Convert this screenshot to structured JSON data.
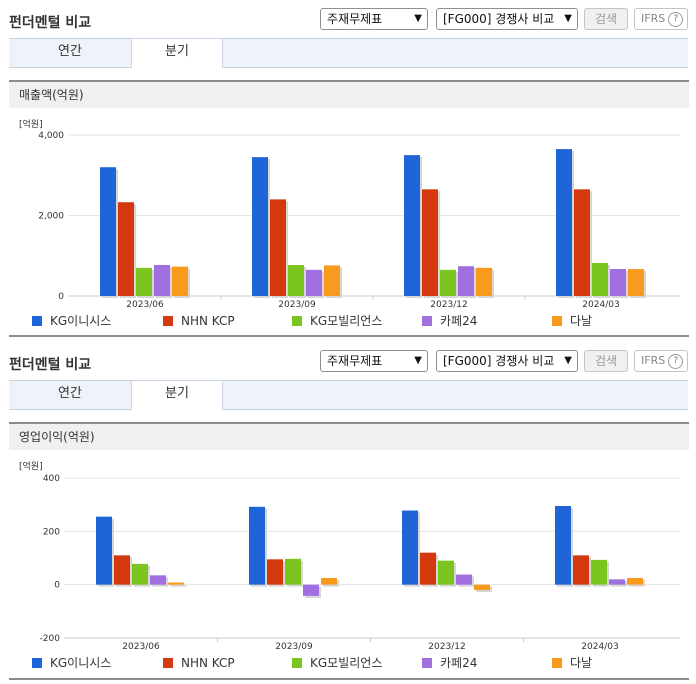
{
  "sections": [
    {
      "title": "펀더멘털 비교",
      "select1": "주재무제표",
      "select2": "[FG000] 경쟁사 비교",
      "search_label": "검색",
      "ifrs_label": "IFRS",
      "help": "?",
      "tabs": [
        {
          "label": "연간"
        },
        {
          "label": "분기"
        }
      ],
      "active_tab": "분기",
      "chart_title": "매출액(억원)",
      "unit": "[억원]"
    },
    {
      "title": "펀더멘털 비교",
      "select1": "주재무제표",
      "select2": "[FG000] 경쟁사 비교",
      "search_label": "검색",
      "ifrs_label": "IFRS",
      "help": "?",
      "tabs": [
        {
          "label": "연간"
        },
        {
          "label": "분기"
        }
      ],
      "active_tab": "분기",
      "chart_title": "영업이익(억원)",
      "unit": "[억원]"
    }
  ],
  "colors": {
    "KG이니시스": "#2065d8",
    "NHN KCP": "#d4380d",
    "KG모빌리언스": "#7cc41f",
    "카페24": "#a070e0",
    "다날": "#f99a1c"
  },
  "chart_data": [
    {
      "type": "bar",
      "title": "매출액(억원)",
      "ylabel": "[억원]",
      "categories": [
        "2023/06",
        "2023/09",
        "2023/12",
        "2024/03"
      ],
      "ylim": [
        0,
        4000
      ],
      "yticks": [
        "0",
        "2,000",
        "4,000"
      ],
      "ytick_values": [
        0,
        2000,
        4000
      ],
      "legend": "bottom",
      "grid": true,
      "series": [
        {
          "name": "KG이니시스",
          "values": [
            3200,
            3450,
            3500,
            3650
          ]
        },
        {
          "name": "NHN KCP",
          "values": [
            2330,
            2400,
            2650,
            2650
          ]
        },
        {
          "name": "KG모빌리언스",
          "values": [
            700,
            770,
            650,
            820
          ]
        },
        {
          "name": "카페24",
          "values": [
            770,
            650,
            740,
            670
          ]
        },
        {
          "name": "다날",
          "values": [
            730,
            760,
            700,
            670
          ]
        }
      ]
    },
    {
      "type": "bar",
      "title": "영업이익(억원)",
      "ylabel": "[억원]",
      "categories": [
        "2023/06",
        "2023/09",
        "2023/12",
        "2024/03"
      ],
      "ylim": [
        -200,
        400
      ],
      "yticks": [
        "-200",
        "0",
        "200",
        "400"
      ],
      "ytick_values": [
        -200,
        0,
        200,
        400
      ],
      "legend": "bottom",
      "grid": true,
      "series": [
        {
          "name": "KG이니시스",
          "values": [
            255,
            292,
            278,
            295
          ]
        },
        {
          "name": "NHN KCP",
          "values": [
            110,
            95,
            120,
            110
          ]
        },
        {
          "name": "KG모빌리언스",
          "values": [
            78,
            97,
            90,
            93
          ]
        },
        {
          "name": "카페24",
          "values": [
            35,
            -42,
            38,
            20
          ]
        },
        {
          "name": "다날",
          "values": [
            8,
            25,
            -20,
            25
          ]
        }
      ]
    }
  ]
}
